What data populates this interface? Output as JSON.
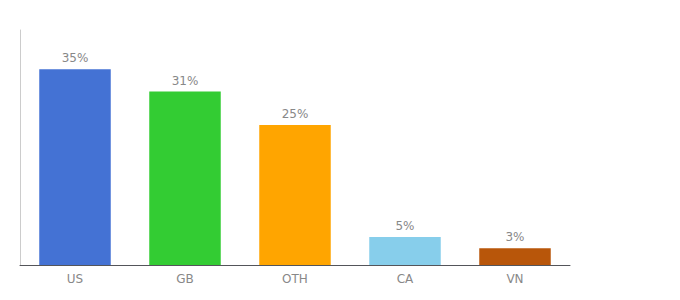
{
  "chart_data": {
    "type": "bar",
    "categories": [
      "US",
      "GB",
      "OTH",
      "CA",
      "VN"
    ],
    "values": [
      35,
      31,
      25,
      5,
      3
    ],
    "value_labels": [
      "35%",
      "31%",
      "25%",
      "5%",
      "3%"
    ],
    "data_labels": true,
    "colors": [
      "#4472D4",
      "#33CC33",
      "#FFA500",
      "#87CEEB",
      "#B8560A"
    ],
    "ylim": [
      0,
      42
    ],
    "tick_labels": "x",
    "grid": false
  }
}
